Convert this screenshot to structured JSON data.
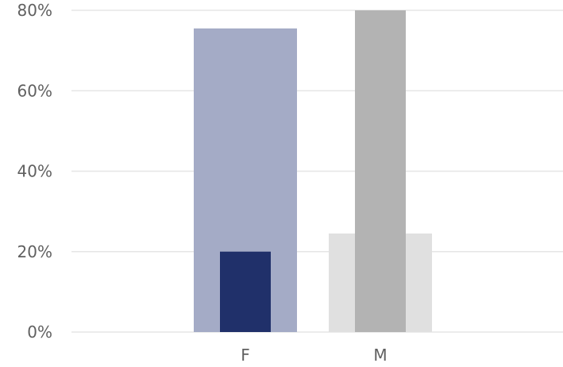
{
  "chart_data": {
    "type": "bar",
    "categories": [
      "F",
      "M"
    ],
    "series": [
      {
        "values": [
          75.5,
          24.5
        ],
        "color": "#a4abc6",
        "role": "wide-background"
      },
      {
        "values": [
          20,
          80
        ],
        "color": "#b3b3b3",
        "role": "narrow-foreground"
      }
    ],
    "category_highlight": {
      "F": {
        "wide": "#a4abc6",
        "narrow": "#20306a"
      },
      "M": {
        "wide": "#e0e0e0",
        "narrow": "#b3b3b3"
      }
    },
    "y_ticks": [
      "0%",
      "20%",
      "40%",
      "60%",
      "80%"
    ],
    "y_tick_values": [
      0,
      20,
      40,
      60,
      80
    ],
    "ylim": [
      0,
      80
    ],
    "title": "",
    "xlabel": "",
    "ylabel": "",
    "grid": true,
    "legend": "none",
    "gridline_color": "#e6e6e6"
  }
}
